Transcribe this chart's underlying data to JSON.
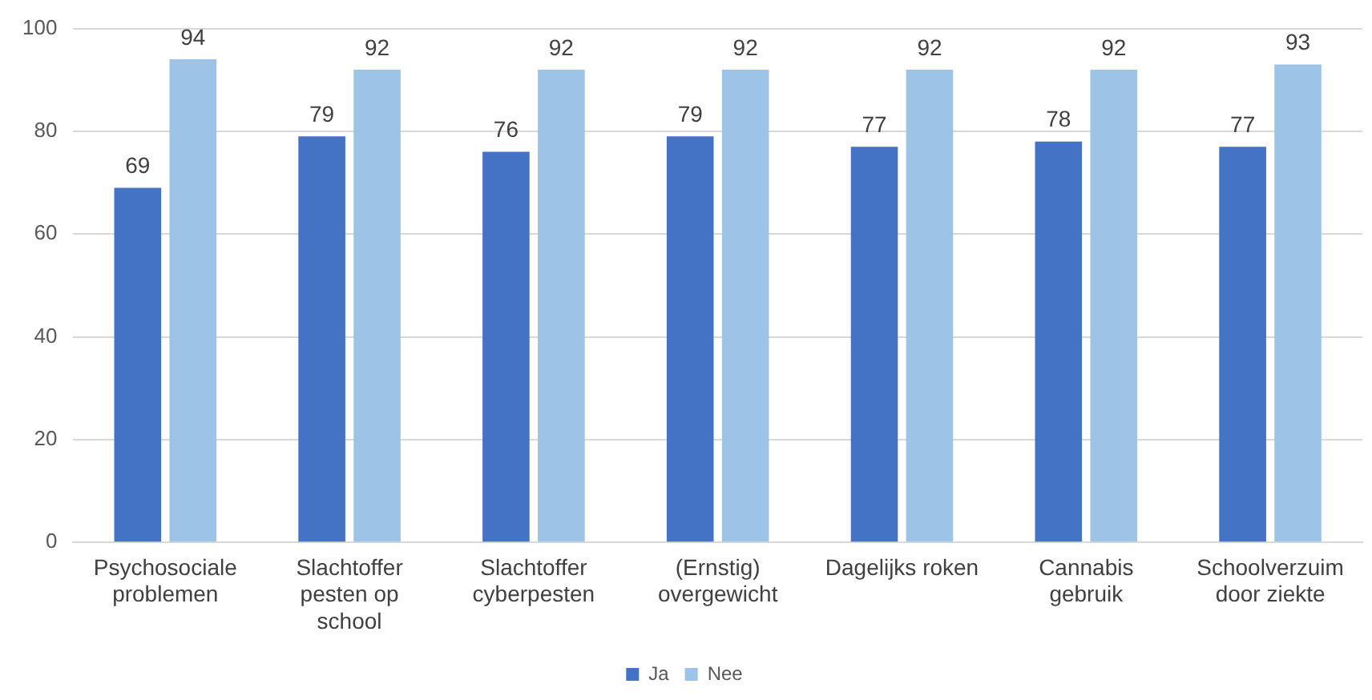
{
  "chart_data": {
    "type": "bar",
    "categories": [
      "Psychosociale problemen",
      "Slachtoffer pesten op school",
      "Slachtoffer cyberpesten",
      "(Ernstig) overgewicht",
      "Dagelijks roken",
      "Cannabis gebruik",
      "Schoolverzuim door ziekte"
    ],
    "series": [
      {
        "name": "Ja",
        "color": "#4472c4",
        "values": [
          69,
          79,
          76,
          79,
          77,
          78,
          77
        ]
      },
      {
        "name": "Nee",
        "color": "#9dc3e6",
        "values": [
          94,
          92,
          92,
          92,
          92,
          92,
          93
        ]
      }
    ],
    "ylim": [
      0,
      100
    ],
    "yticks": [
      0,
      20,
      40,
      60,
      80,
      100
    ],
    "grid": "y",
    "legend": "bottom",
    "data_labels": true
  }
}
